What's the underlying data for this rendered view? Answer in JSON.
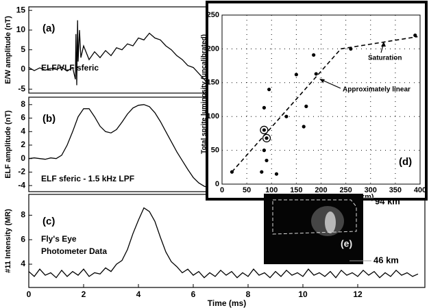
{
  "chart_data": [
    {
      "type": "line",
      "label": "(a)",
      "text": [
        "ELF/VLF sferic"
      ],
      "ylabel": "E/W amplitude (nT)",
      "color": "#000000",
      "xlim": [
        0,
        14.45
      ],
      "ylim": [
        -6,
        15.9
      ],
      "yticks": [
        -5,
        0,
        5,
        10,
        15
      ],
      "x": [
        0,
        0.2,
        0.4,
        0.6,
        0.8,
        1.0,
        1.2,
        1.4,
        1.6,
        1.7,
        1.72,
        1.75,
        1.78,
        1.8,
        1.85,
        1.9,
        2.0,
        2.2,
        2.4,
        2.6,
        2.8,
        3.0,
        3.2,
        3.4,
        3.6,
        3.8,
        4.0,
        4.2,
        4.4,
        4.6,
        4.8,
        5.0,
        5.2,
        5.4,
        5.6,
        5.8,
        6.0,
        6.2,
        6.4,
        6.6
      ],
      "values": [
        0.5,
        -0.3,
        0.4,
        -0.2,
        0.3,
        0,
        0.6,
        -0.4,
        0.5,
        -2.5,
        9,
        -4,
        12.5,
        2,
        10,
        3,
        6,
        2.5,
        4.5,
        3,
        4.8,
        3.5,
        5.5,
        5,
        6.5,
        6,
        8,
        7.5,
        9.2,
        8,
        7.5,
        6,
        5,
        3.5,
        2.5,
        1,
        0.5,
        -1,
        -2.5,
        -4.5
      ]
    },
    {
      "type": "line",
      "label": "(b)",
      "text": [
        "ELF sferic - 1.5 kHz LPF"
      ],
      "ylabel": "ELF amplitude (nT)",
      "color": "#000000",
      "xlim": [
        0,
        14.45
      ],
      "ylim": [
        -4.9,
        9.1
      ],
      "yticks": [
        -4,
        -2,
        0,
        2,
        4,
        6,
        8
      ],
      "x": [
        0,
        0.2,
        0.4,
        0.6,
        0.8,
        1.0,
        1.2,
        1.4,
        1.6,
        1.8,
        2.0,
        2.2,
        2.4,
        2.6,
        2.8,
        3.0,
        3.2,
        3.4,
        3.6,
        3.8,
        4.0,
        4.2,
        4.4,
        4.6,
        4.8,
        5.0,
        5.2,
        5.4,
        5.6,
        5.8,
        6.0,
        6.2,
        6.4,
        6.6,
        6.8,
        7.0,
        7.2,
        7.4,
        7.6,
        7.8,
        8.0
      ],
      "values": [
        0,
        0.1,
        0,
        -0.1,
        0.1,
        0,
        0.5,
        2,
        4,
        6.2,
        7.4,
        7.4,
        6.2,
        4.8,
        4.0,
        3.8,
        4.3,
        5.4,
        6.6,
        7.5,
        7.9,
        8.0,
        7.7,
        6.8,
        5.5,
        4,
        2.5,
        1,
        -0.3,
        -1.6,
        -2.8,
        -3.6,
        -4.1,
        -4.3,
        -4.3,
        -4.2,
        -4.1,
        -4.0,
        -3.9,
        -3.9,
        -3.8
      ]
    },
    {
      "type": "line",
      "label": "(c)",
      "text": [
        "Fly's Eye",
        "Photometer Data"
      ],
      "ylabel": "#11 Intensity (MR)",
      "xlabel": "Time (ms)",
      "color": "#000000",
      "xlim": [
        0,
        14.45
      ],
      "ylim": [
        2.1,
        9.7
      ],
      "yticks": [
        4,
        6,
        8
      ],
      "xticks": [
        0,
        2,
        4,
        6,
        8,
        10,
        12
      ],
      "x": [
        0,
        0.2,
        0.4,
        0.6,
        0.8,
        1.0,
        1.2,
        1.4,
        1.6,
        1.8,
        2.0,
        2.2,
        2.4,
        2.6,
        2.8,
        3.0,
        3.2,
        3.4,
        3.6,
        3.8,
        4.0,
        4.2,
        4.4,
        4.6,
        4.8,
        5.0,
        5.2,
        5.4,
        5.6,
        5.8,
        6.0,
        6.2,
        6.4,
        6.6,
        6.8,
        7.0,
        7.2,
        7.4,
        7.6,
        7.8,
        8.0,
        8.2,
        8.4,
        8.6,
        8.8,
        9.0,
        9.2,
        9.4,
        9.6,
        9.8,
        10.0,
        10.2,
        10.4,
        10.6,
        10.8,
        11.0,
        11.2,
        11.4,
        11.6,
        11.8,
        12.0,
        12.2,
        12.4,
        12.6,
        12.8,
        13.0,
        13.2,
        13.4,
        13.6,
        13.8,
        14.0,
        14.2
      ],
      "values": [
        3.4,
        3.0,
        3.6,
        3.1,
        3.3,
        2.9,
        3.5,
        3.0,
        3.4,
        3.1,
        3.6,
        3.0,
        3.3,
        3.2,
        3.7,
        3.4,
        4.0,
        4.3,
        5.2,
        6.5,
        7.6,
        8.6,
        8.3,
        7.5,
        6.2,
        5.0,
        4.2,
        3.8,
        3.3,
        3.6,
        3.1,
        3.4,
        2.9,
        3.3,
        3.0,
        3.5,
        3.1,
        3.4,
        2.9,
        3.3,
        3.0,
        3.6,
        3.1,
        3.3,
        2.9,
        3.4,
        3.0,
        3.5,
        3.1,
        3.3,
        3.0,
        3.6,
        3.1,
        3.3,
        3.0,
        3.4,
        2.9,
        3.5,
        3.1,
        3.3,
        3.0,
        3.5,
        3.1,
        3.4,
        2.9,
        3.3,
        3.0,
        3.5,
        3.1,
        3.3,
        3.0,
        3.2
      ]
    },
    {
      "type": "scatter",
      "label": "(d)",
      "xlabel": "Sprite charge moment (C-km)",
      "ylabel": "Total sprite luminosity (uncalibrated)",
      "color": "#000000",
      "grid": true,
      "xlim": [
        0,
        400
      ],
      "ylim": [
        0,
        250
      ],
      "xticks": [
        0,
        50,
        100,
        150,
        200,
        250,
        300,
        350,
        400
      ],
      "yticks": [
        0,
        50,
        100,
        150,
        200,
        250
      ],
      "x": [
        20,
        80,
        85,
        85,
        85,
        90,
        90,
        95,
        110,
        130,
        150,
        165,
        170,
        185,
        190,
        260,
        390
      ],
      "values": [
        18,
        18,
        50,
        80,
        113,
        68,
        35,
        140,
        15,
        100,
        162,
        85,
        115,
        191,
        163,
        200,
        220
      ],
      "circled": [
        3,
        5
      ],
      "fit_x": [
        20,
        240,
        395
      ],
      "fit_y": [
        18,
        200,
        218
      ],
      "annotations": [
        "Approximately linear",
        "Saturation"
      ]
    },
    {
      "type": "image",
      "label": "(e)",
      "top_label": "94 km",
      "bottom_label": "46 km"
    }
  ]
}
